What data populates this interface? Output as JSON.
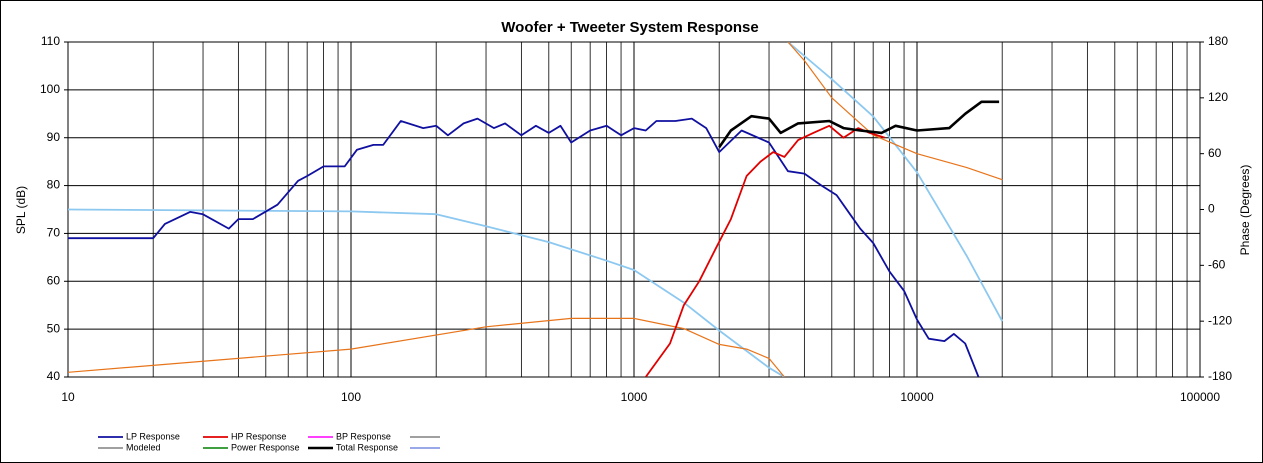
{
  "chart_data": {
    "type": "line",
    "title": "Woofer + Tweeter    System Response",
    "ylabel": "SPL (dB)",
    "y2label": "Phase (Degrees)",
    "xscale": "log",
    "xlim": [
      10,
      100000
    ],
    "xticks": [
      10,
      100,
      1000,
      10000,
      100000
    ],
    "minor_grid": true,
    "ylim": [
      40,
      110
    ],
    "yticks": [
      40,
      50,
      60,
      70,
      80,
      90,
      100,
      110
    ],
    "y2lim": [
      -180,
      180
    ],
    "y2ticks": [
      -180,
      -120,
      -60,
      0,
      60,
      120,
      180
    ],
    "grid": true,
    "series": [
      {
        "name": "LP Response",
        "color": "#1010a0",
        "width": 1.8,
        "x": [
          10,
          20,
          22,
          27,
          30,
          37,
          40,
          45,
          55,
          65,
          70,
          80,
          95,
          105,
          120,
          130,
          150,
          180,
          200,
          220,
          250,
          280,
          320,
          350,
          400,
          450,
          500,
          550,
          600,
          700,
          800,
          900,
          1000,
          1100,
          1200,
          1400,
          1600,
          1800,
          2000,
          2400,
          3000,
          3500,
          4000,
          4600,
          5200,
          5800,
          6300,
          7000,
          8000,
          9000,
          10000,
          11000,
          12500,
          13500,
          14800,
          16500
        ],
        "values": [
          69,
          69,
          72,
          74.5,
          74,
          71,
          73,
          73,
          76,
          81,
          82,
          84,
          84,
          87.5,
          88.5,
          88.5,
          93.5,
          92,
          92.5,
          90.5,
          93,
          94,
          92,
          93,
          90.5,
          92.5,
          91,
          92.5,
          89,
          91.5,
          92.5,
          90.5,
          92,
          91.5,
          93.5,
          93.5,
          94,
          92,
          87,
          91.5,
          89,
          83,
          82.5,
          80,
          78,
          74,
          71,
          68,
          62,
          58,
          52,
          48,
          47.5,
          49,
          47,
          40
        ]
      },
      {
        "name": "HP Response",
        "color": "#e00000",
        "width": 1.8,
        "x": [
          1100,
          1340,
          1500,
          1700,
          1950,
          2200,
          2500,
          2800,
          3100,
          3400,
          3800,
          4300,
          4900,
          5500,
          6200,
          6800,
          7700
        ],
        "values": [
          40,
          47,
          55,
          60,
          67,
          73,
          82,
          85,
          87,
          86,
          89.5,
          91,
          92.5,
          90,
          92,
          91,
          90
        ]
      },
      {
        "name": "BP Response",
        "color": "#ff00ff",
        "width": 1.5,
        "x": [],
        "values": []
      },
      {
        "name": "Modeled",
        "color": "#808080",
        "width": 1.5,
        "x": [],
        "values": []
      },
      {
        "name": "Power Response",
        "color": "#008000",
        "width": 1.5,
        "x": [],
        "values": []
      },
      {
        "name": "Total Response",
        "color": "#000000",
        "width": 2.6,
        "x": [
          2000,
          2200,
          2600,
          3000,
          3300,
          3800,
          4900,
          5500,
          6300,
          7500,
          8400,
          10000,
          13000,
          14800,
          16900,
          19500
        ],
        "values": [
          88,
          91.5,
          94.5,
          94,
          91,
          93,
          93.5,
          92,
          91.5,
          91,
          92.5,
          91.5,
          92,
          95,
          97.5,
          97.5
        ]
      },
      {
        "color": "#8cc8f0",
        "width": 1.8,
        "axis": "y2",
        "x": [
          10,
          100,
          200,
          300,
          500,
          800,
          1000,
          1500,
          2000,
          3000,
          3400,
          3450,
          3500,
          4000,
          5000,
          7000,
          10000,
          15000,
          20000
        ],
        "values": [
          0,
          -2,
          -5,
          -18,
          -35,
          -55,
          -65,
          -100,
          -130,
          -170,
          -180,
          null,
          180,
          165,
          140,
          100,
          40,
          -50,
          -120
        ]
      },
      {
        "color": "#e8741a",
        "width": 1.2,
        "axis": "y2",
        "x": [
          10,
          100,
          300,
          600,
          1000,
          1500,
          2000,
          2500,
          3000,
          3400,
          3450,
          3500,
          4000,
          5000,
          7000,
          10000,
          15000,
          20000
        ],
        "values": [
          -175,
          -150,
          -126,
          -117,
          -117,
          -128,
          -145,
          -150,
          -160,
          -180,
          null,
          180,
          160,
          120,
          80,
          60,
          45,
          32
        ]
      }
    ]
  }
}
